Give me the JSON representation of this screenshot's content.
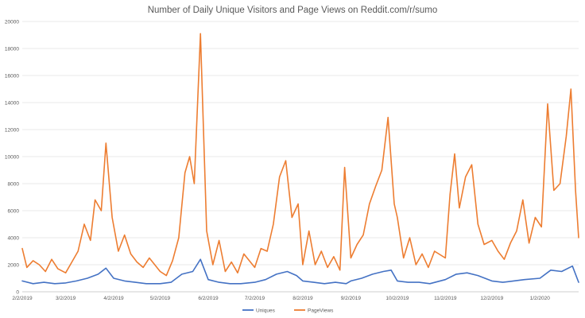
{
  "chart_data": {
    "type": "line",
    "title": "Number of Daily Unique Visitors and Page Views on Reddit.com/r/sumo",
    "xlabel": "",
    "ylabel": "",
    "ylim": [
      0,
      20000
    ],
    "y_ticks": [
      0,
      2000,
      4000,
      6000,
      8000,
      10000,
      12000,
      14000,
      16000,
      18000,
      20000
    ],
    "x_start": "2/2/2019",
    "x_end": "1/27/2020",
    "x_tick_labels": [
      "2/2/2019",
      "3/2/2019",
      "4/2/2019",
      "5/2/2019",
      "6/2/2019",
      "7/2/2019",
      "8/2/2019",
      "9/2/2019",
      "10/2/2019",
      "11/2/2019",
      "12/2/2019",
      "1/2/2020"
    ],
    "grid": true,
    "legend_position": "bottom",
    "series": [
      {
        "name": "Uniques",
        "color": "#4472C4",
        "points": [
          [
            "2/2/2019",
            800
          ],
          [
            "2/9/2019",
            600
          ],
          [
            "2/16/2019",
            700
          ],
          [
            "2/23/2019",
            600
          ],
          [
            "3/2/2019",
            650
          ],
          [
            "3/9/2019",
            800
          ],
          [
            "3/16/2019",
            1000
          ],
          [
            "3/23/2019",
            1300
          ],
          [
            "3/28/2019",
            1750
          ],
          [
            "4/2/2019",
            1000
          ],
          [
            "4/9/2019",
            800
          ],
          [
            "4/16/2019",
            700
          ],
          [
            "4/23/2019",
            600
          ],
          [
            "5/2/2019",
            600
          ],
          [
            "5/9/2019",
            700
          ],
          [
            "5/16/2019",
            1300
          ],
          [
            "5/23/2019",
            1500
          ],
          [
            "5/28/2019",
            2400
          ],
          [
            "6/2/2019",
            900
          ],
          [
            "6/9/2019",
            700
          ],
          [
            "6/16/2019",
            600
          ],
          [
            "6/23/2019",
            600
          ],
          [
            "7/2/2019",
            700
          ],
          [
            "7/9/2019",
            900
          ],
          [
            "7/16/2019",
            1300
          ],
          [
            "7/23/2019",
            1500
          ],
          [
            "7/29/2019",
            1200
          ],
          [
            "8/2/2019",
            800
          ],
          [
            "8/9/2019",
            700
          ],
          [
            "8/16/2019",
            600
          ],
          [
            "8/23/2019",
            700
          ],
          [
            "8/30/2019",
            600
          ],
          [
            "9/2/2019",
            800
          ],
          [
            "9/9/2019",
            1000
          ],
          [
            "9/16/2019",
            1300
          ],
          [
            "9/23/2019",
            1500
          ],
          [
            "9/28/2019",
            1600
          ],
          [
            "10/2/2019",
            800
          ],
          [
            "10/9/2019",
            700
          ],
          [
            "10/16/2019",
            700
          ],
          [
            "10/23/2019",
            600
          ],
          [
            "11/2/2019",
            900
          ],
          [
            "11/9/2019",
            1300
          ],
          [
            "11/16/2019",
            1400
          ],
          [
            "11/23/2019",
            1200
          ],
          [
            "12/2/2019",
            800
          ],
          [
            "12/9/2019",
            700
          ],
          [
            "12/16/2019",
            800
          ],
          [
            "12/23/2019",
            900
          ],
          [
            "1/2/2020",
            1000
          ],
          [
            "1/9/2020",
            1600
          ],
          [
            "1/16/2020",
            1500
          ],
          [
            "1/23/2020",
            1900
          ],
          [
            "1/27/2020",
            700
          ]
        ]
      },
      {
        "name": "PageViews",
        "color": "#ED7D31",
        "points": [
          [
            "2/2/2019",
            3200
          ],
          [
            "2/5/2019",
            1800
          ],
          [
            "2/9/2019",
            2300
          ],
          [
            "2/13/2019",
            2000
          ],
          [
            "2/17/2019",
            1500
          ],
          [
            "2/21/2019",
            2400
          ],
          [
            "2/25/2019",
            1700
          ],
          [
            "3/2/2019",
            1400
          ],
          [
            "3/6/2019",
            2200
          ],
          [
            "3/10/2019",
            3000
          ],
          [
            "3/14/2019",
            5000
          ],
          [
            "3/18/2019",
            3800
          ],
          [
            "3/21/2019",
            6800
          ],
          [
            "3/25/2019",
            6000
          ],
          [
            "3/28/2019",
            11000
          ],
          [
            "4/1/2019",
            5500
          ],
          [
            "4/5/2019",
            3000
          ],
          [
            "4/9/2019",
            4200
          ],
          [
            "4/13/2019",
            2800
          ],
          [
            "4/17/2019",
            2200
          ],
          [
            "4/21/2019",
            1800
          ],
          [
            "4/25/2019",
            2500
          ],
          [
            "5/2/2019",
            1500
          ],
          [
            "5/6/2019",
            1200
          ],
          [
            "5/10/2019",
            2300
          ],
          [
            "5/14/2019",
            4000
          ],
          [
            "5/18/2019",
            8800
          ],
          [
            "5/21/2019",
            10000
          ],
          [
            "5/24/2019",
            8000
          ],
          [
            "5/28/2019",
            19100
          ],
          [
            "6/1/2019",
            4500
          ],
          [
            "6/5/2019",
            2000
          ],
          [
            "6/9/2019",
            3800
          ],
          [
            "6/13/2019",
            1500
          ],
          [
            "6/17/2019",
            2200
          ],
          [
            "6/21/2019",
            1400
          ],
          [
            "6/25/2019",
            2800
          ],
          [
            "7/2/2019",
            1800
          ],
          [
            "7/6/2019",
            3200
          ],
          [
            "7/10/2019",
            3000
          ],
          [
            "7/14/2019",
            5000
          ],
          [
            "7/18/2019",
            8500
          ],
          [
            "7/22/2019",
            9700
          ],
          [
            "7/26/2019",
            5500
          ],
          [
            "7/30/2019",
            6500
          ],
          [
            "8/2/2019",
            2000
          ],
          [
            "8/6/2019",
            4500
          ],
          [
            "8/10/2019",
            2000
          ],
          [
            "8/14/2019",
            3000
          ],
          [
            "8/18/2019",
            1800
          ],
          [
            "8/22/2019",
            2600
          ],
          [
            "8/26/2019",
            1600
          ],
          [
            "8/29/2019",
            9200
          ],
          [
            "9/2/2019",
            2500
          ],
          [
            "9/6/2019",
            3500
          ],
          [
            "9/10/2019",
            4200
          ],
          [
            "9/14/2019",
            6500
          ],
          [
            "9/18/2019",
            7800
          ],
          [
            "9/22/2019",
            9000
          ],
          [
            "9/26/2019",
            12900
          ],
          [
            "9/30/2019",
            6500
          ],
          [
            "10/2/2019",
            5500
          ],
          [
            "10/6/2019",
            2500
          ],
          [
            "10/10/2019",
            4000
          ],
          [
            "10/14/2019",
            2000
          ],
          [
            "10/18/2019",
            2800
          ],
          [
            "10/22/2019",
            1800
          ],
          [
            "10/26/2019",
            3000
          ],
          [
            "11/2/2019",
            2500
          ],
          [
            "11/5/2019",
            7200
          ],
          [
            "11/8/2019",
            10200
          ],
          [
            "11/11/2019",
            6200
          ],
          [
            "11/15/2019",
            8500
          ],
          [
            "11/19/2019",
            9400
          ],
          [
            "11/23/2019",
            5000
          ],
          [
            "11/27/2019",
            3500
          ],
          [
            "12/2/2019",
            3800
          ],
          [
            "12/6/2019",
            3000
          ],
          [
            "12/10/2019",
            2400
          ],
          [
            "12/14/2019",
            3600
          ],
          [
            "12/18/2019",
            4500
          ],
          [
            "12/22/2019",
            6800
          ],
          [
            "12/26/2019",
            3600
          ],
          [
            "12/30/2019",
            5500
          ],
          [
            "1/3/2020",
            4800
          ],
          [
            "1/7/2020",
            13900
          ],
          [
            "1/11/2020",
            7500
          ],
          [
            "1/15/2020",
            8000
          ],
          [
            "1/19/2020",
            11500
          ],
          [
            "1/22/2020",
            15000
          ],
          [
            "1/25/2020",
            7500
          ],
          [
            "1/27/2020",
            4000
          ]
        ]
      }
    ]
  }
}
